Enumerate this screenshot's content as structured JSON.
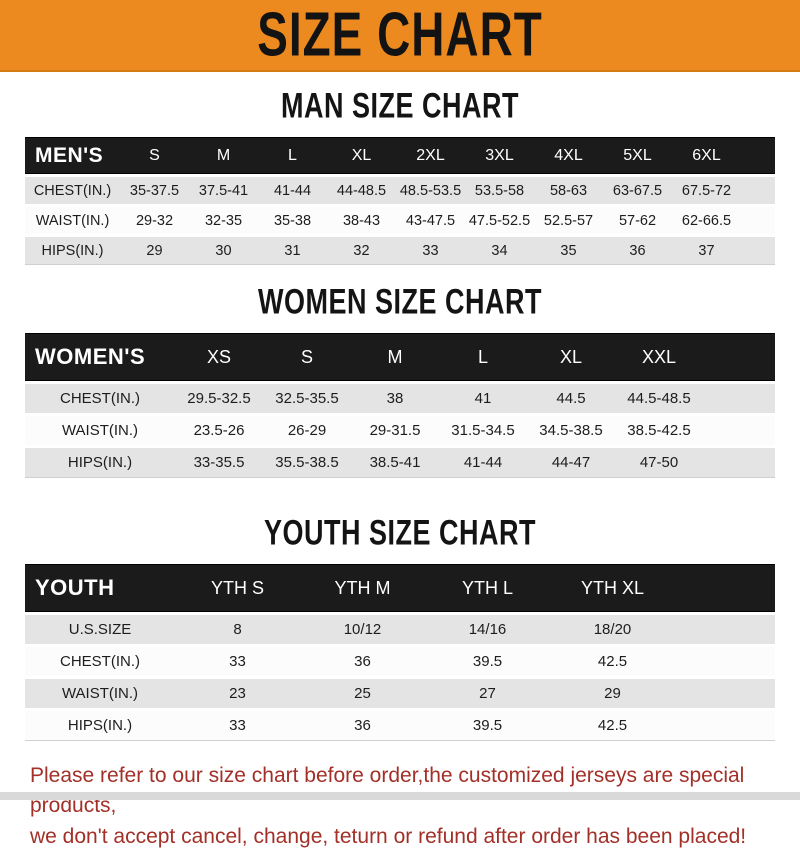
{
  "banner": {
    "title": "SIZE CHART",
    "bg_color": "#EC8A20"
  },
  "colors": {
    "header_bar": "#1B1B1B",
    "row_shaded": "#E4E4E4",
    "row_plain": "#FCFCFC",
    "notice_text": "#A33028"
  },
  "sections": [
    {
      "heading": "MAN SIZE CHART",
      "table": {
        "label": "MEN'S",
        "columns": [
          "S",
          "M",
          "L",
          "XL",
          "2XL",
          "3XL",
          "4XL",
          "5XL",
          "6XL"
        ],
        "rows": [
          {
            "label": "CHEST(IN.)",
            "values": [
              "35-37.5",
              "37.5-41",
              "41-44",
              "44-48.5",
              "48.5-53.5",
              "53.5-58",
              "58-63",
              "63-67.5",
              "67.5-72"
            ]
          },
          {
            "label": "WAIST(IN.)",
            "values": [
              "29-32",
              "32-35",
              "35-38",
              "38-43",
              "43-47.5",
              "47.5-52.5",
              "52.5-57",
              "57-62",
              "62-66.5"
            ]
          },
          {
            "label": "HIPS(IN.)",
            "values": [
              "29",
              "30",
              "31",
              "32",
              "33",
              "34",
              "35",
              "36",
              "37"
            ]
          }
        ]
      }
    },
    {
      "heading": "WOMEN SIZE CHART",
      "table": {
        "label": "WOMEN'S",
        "columns": [
          "XS",
          "S",
          "M",
          "L",
          "XL",
          "XXL"
        ],
        "rows": [
          {
            "label": "CHEST(IN.)",
            "values": [
              "29.5-32.5",
              "32.5-35.5",
              "38",
              "41",
              "44.5",
              "44.5-48.5"
            ]
          },
          {
            "label": "WAIST(IN.)",
            "values": [
              "23.5-26",
              "26-29",
              "29-31.5",
              "31.5-34.5",
              "34.5-38.5",
              "38.5-42.5"
            ]
          },
          {
            "label": "HIPS(IN.)",
            "values": [
              "33-35.5",
              "35.5-38.5",
              "38.5-41",
              "41-44",
              "44-47",
              "47-50"
            ]
          }
        ]
      }
    },
    {
      "heading": "YOUTH SIZE CHART",
      "table": {
        "label": "YOUTH",
        "columns": [
          "YTH S",
          "YTH M",
          "YTH L",
          "YTH XL"
        ],
        "rows": [
          {
            "label": "U.S.SIZE",
            "values": [
              "8",
              "10/12",
              "14/16",
              "18/20"
            ]
          },
          {
            "label": "CHEST(IN.)",
            "values": [
              "33",
              "36",
              "39.5",
              "42.5"
            ]
          },
          {
            "label": "WAIST(IN.)",
            "values": [
              "23",
              "25",
              "27",
              "29"
            ]
          },
          {
            "label": "HIPS(IN.)",
            "values": [
              "33",
              "36",
              "39.5",
              "42.5"
            ]
          }
        ]
      }
    }
  ],
  "footer": {
    "line1": "Please refer to our size chart before order,the customized jerseys are special products,",
    "line2": "we don't accept cancel, change, teturn or refund after order has been placed!"
  }
}
